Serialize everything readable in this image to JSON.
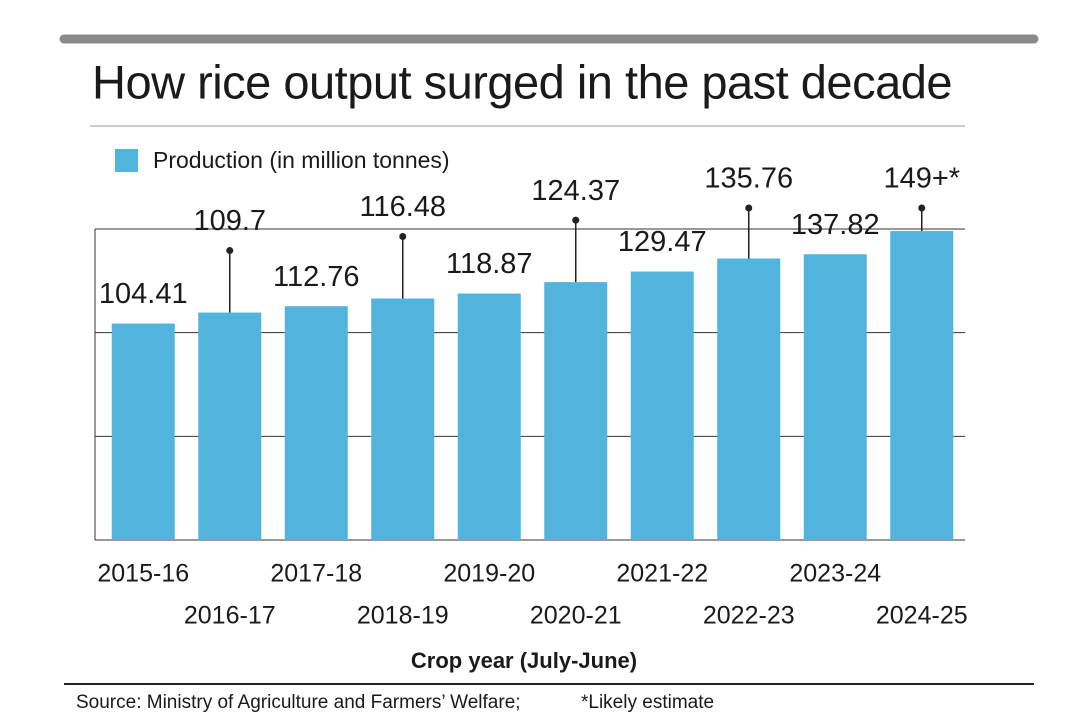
{
  "chart_data": {
    "type": "bar",
    "title": "How rice output surged in the past decade",
    "x_label": "Crop year (July-June)",
    "source": "Source: Ministry of Agriculture and Farmers’ Welfare;",
    "note": "*Likely estimate",
    "categories": [
      "2015-16",
      "2016-17",
      "2017-18",
      "2018-19",
      "2019-20",
      "2020-21",
      "2021-22",
      "2022-23",
      "2023-24",
      "2024-25"
    ],
    "series": [
      {
        "name": "Production (in million tonnes)",
        "color": "#52b3dd",
        "values": [
          104.41,
          109.7,
          112.76,
          116.48,
          118.87,
          124.37,
          129.47,
          135.76,
          137.82,
          149
        ],
        "value_labels": [
          "104.41",
          "109.7",
          "112.76",
          "116.48",
          "118.87",
          "124.37",
          "129.47",
          "135.76",
          "137.82",
          "149+*"
        ]
      }
    ],
    "ylim": [
      0,
      150
    ],
    "yticks": [
      50,
      100,
      150
    ],
    "grid": true
  }
}
